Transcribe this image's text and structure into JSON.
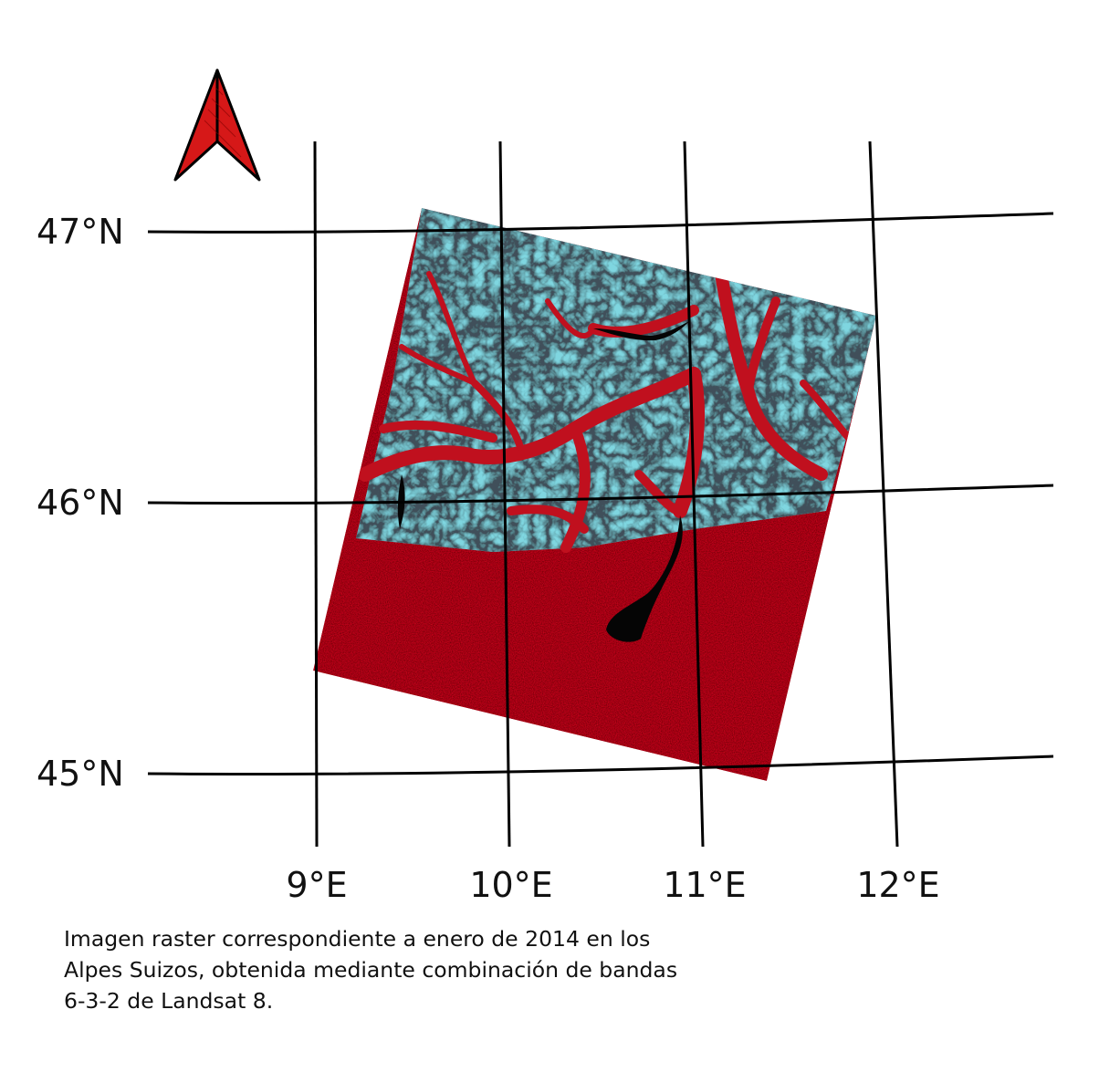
{
  "map": {
    "north_arrow": {
      "icon": "north-arrow-icon",
      "color": "#d61818"
    },
    "graticule": {
      "latitudes": [
        {
          "value": 47,
          "label": "47°N"
        },
        {
          "value": 46,
          "label": "46°N"
        },
        {
          "value": 45,
          "label": "45°N"
        }
      ],
      "longitudes": [
        {
          "value": 9,
          "label": "9°E"
        },
        {
          "value": 10,
          "label": "10°E"
        },
        {
          "value": 11,
          "label": "11°E"
        },
        {
          "value": 12,
          "label": "12°E"
        }
      ]
    },
    "raster": {
      "colors": {
        "vegetation": "#c0101e",
        "snow": "#7fd6e0",
        "water": "#050505"
      }
    }
  },
  "caption": "Imagen raster correspondiente a enero de 2014 en los Alpes Suizos, obtenida mediante combinación de bandas 6-3-2 de Landsat 8."
}
